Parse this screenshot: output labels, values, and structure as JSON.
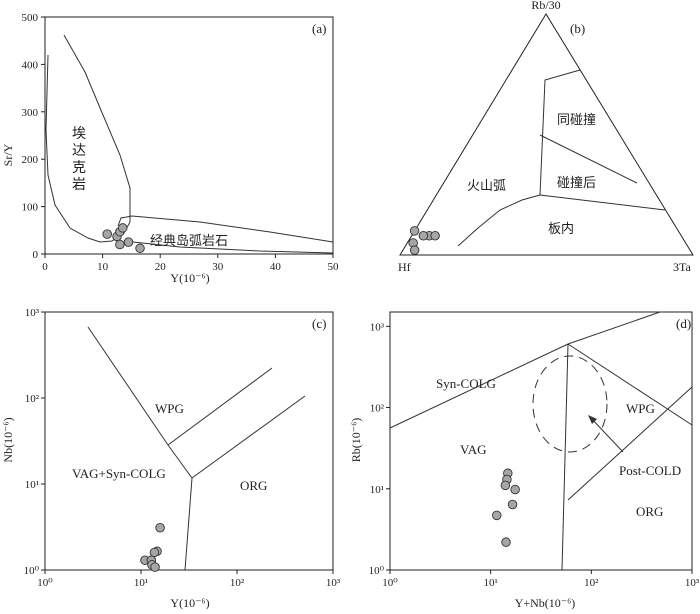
{
  "chart_data": [
    {
      "id": "a",
      "type": "scatter",
      "panel_label": "(a)",
      "xlabel": "Y(10⁻⁶)",
      "ylabel": "Sr/Y",
      "xlim": [
        0,
        50
      ],
      "ylim": [
        0,
        500
      ],
      "x_ticks": [
        "0",
        "10",
        "20",
        "30",
        "40",
        "50"
      ],
      "y_ticks": [
        "0",
        "100",
        "200",
        "300",
        "400",
        "500"
      ],
      "field_labels": [
        "埃达克岩",
        "经典岛弧岩石"
      ],
      "points": [
        {
          "x": 10.8,
          "y": 42
        },
        {
          "x": 12.5,
          "y": 37
        },
        {
          "x": 13.0,
          "y": 47
        },
        {
          "x": 13.5,
          "y": 55
        },
        {
          "x": 13.0,
          "y": 20
        },
        {
          "x": 14.5,
          "y": 25
        },
        {
          "x": 16.5,
          "y": 12
        }
      ]
    },
    {
      "id": "b",
      "type": "scatter",
      "panel_label": "(b)",
      "apex_labels": [
        "Rb/30",
        "Hf",
        "3Ta"
      ],
      "field_labels": [
        "同碰撞",
        "碰撞后",
        "火山弧",
        "板内"
      ],
      "points": [
        {
          "hf": 0.9,
          "rb": 0.1,
          "ta": 0.0
        },
        {
          "hf": 0.93,
          "rb": 0.05,
          "ta": 0.02
        },
        {
          "hf": 0.94,
          "rb": 0.02,
          "ta": 0.04
        },
        {
          "hf": 0.86,
          "rb": 0.08,
          "ta": 0.06
        },
        {
          "hf": 0.88,
          "rb": 0.08,
          "ta": 0.04
        },
        {
          "hf": 0.84,
          "rb": 0.08,
          "ta": 0.08
        }
      ]
    },
    {
      "id": "c",
      "type": "scatter",
      "panel_label": "(c)",
      "xlabel": "Y(10⁻⁶)",
      "ylabel": "Nb(10⁻⁶)",
      "scale": "log",
      "xlim": [
        1,
        1000
      ],
      "ylim": [
        1,
        1000
      ],
      "x_ticks": [
        "10⁰",
        "10¹",
        "10²",
        "10³"
      ],
      "y_ticks": [
        "10⁰",
        "10¹",
        "10²",
        "10³"
      ],
      "field_labels": [
        "WPG",
        "VAG+Syn-COLG",
        "ORG"
      ],
      "points": [
        {
          "x": 15.8,
          "y": 3.1
        },
        {
          "x": 14.7,
          "y": 1.65
        },
        {
          "x": 13.8,
          "y": 1.6
        },
        {
          "x": 11.0,
          "y": 1.3
        },
        {
          "x": 12.8,
          "y": 1.3
        },
        {
          "x": 13.0,
          "y": 1.15
        },
        {
          "x": 14.0,
          "y": 1.08
        }
      ]
    },
    {
      "id": "d",
      "type": "scatter",
      "panel_label": "(d)",
      "xlabel": "Y+Nb(10⁻⁶)",
      "ylabel": "Rb(10⁻⁶)",
      "scale": "log",
      "xlim": [
        1,
        1000
      ],
      "ylim": [
        1,
        1500
      ],
      "x_ticks": [
        "10⁰",
        "10¹",
        "10²",
        "10³"
      ],
      "y_ticks": [
        "10⁰",
        "10¹",
        "10²",
        "10³"
      ],
      "field_labels": [
        "Syn-COLG",
        "WPG",
        "VAG",
        "Post-COLD",
        "ORG"
      ],
      "points": [
        {
          "x": 14.8,
          "y": 15.5
        },
        {
          "x": 14.5,
          "y": 13.0
        },
        {
          "x": 14.0,
          "y": 11.0
        },
        {
          "x": 17.5,
          "y": 9.8
        },
        {
          "x": 16.5,
          "y": 6.4
        },
        {
          "x": 11.5,
          "y": 4.7
        },
        {
          "x": 14.2,
          "y": 2.2
        }
      ]
    }
  ]
}
